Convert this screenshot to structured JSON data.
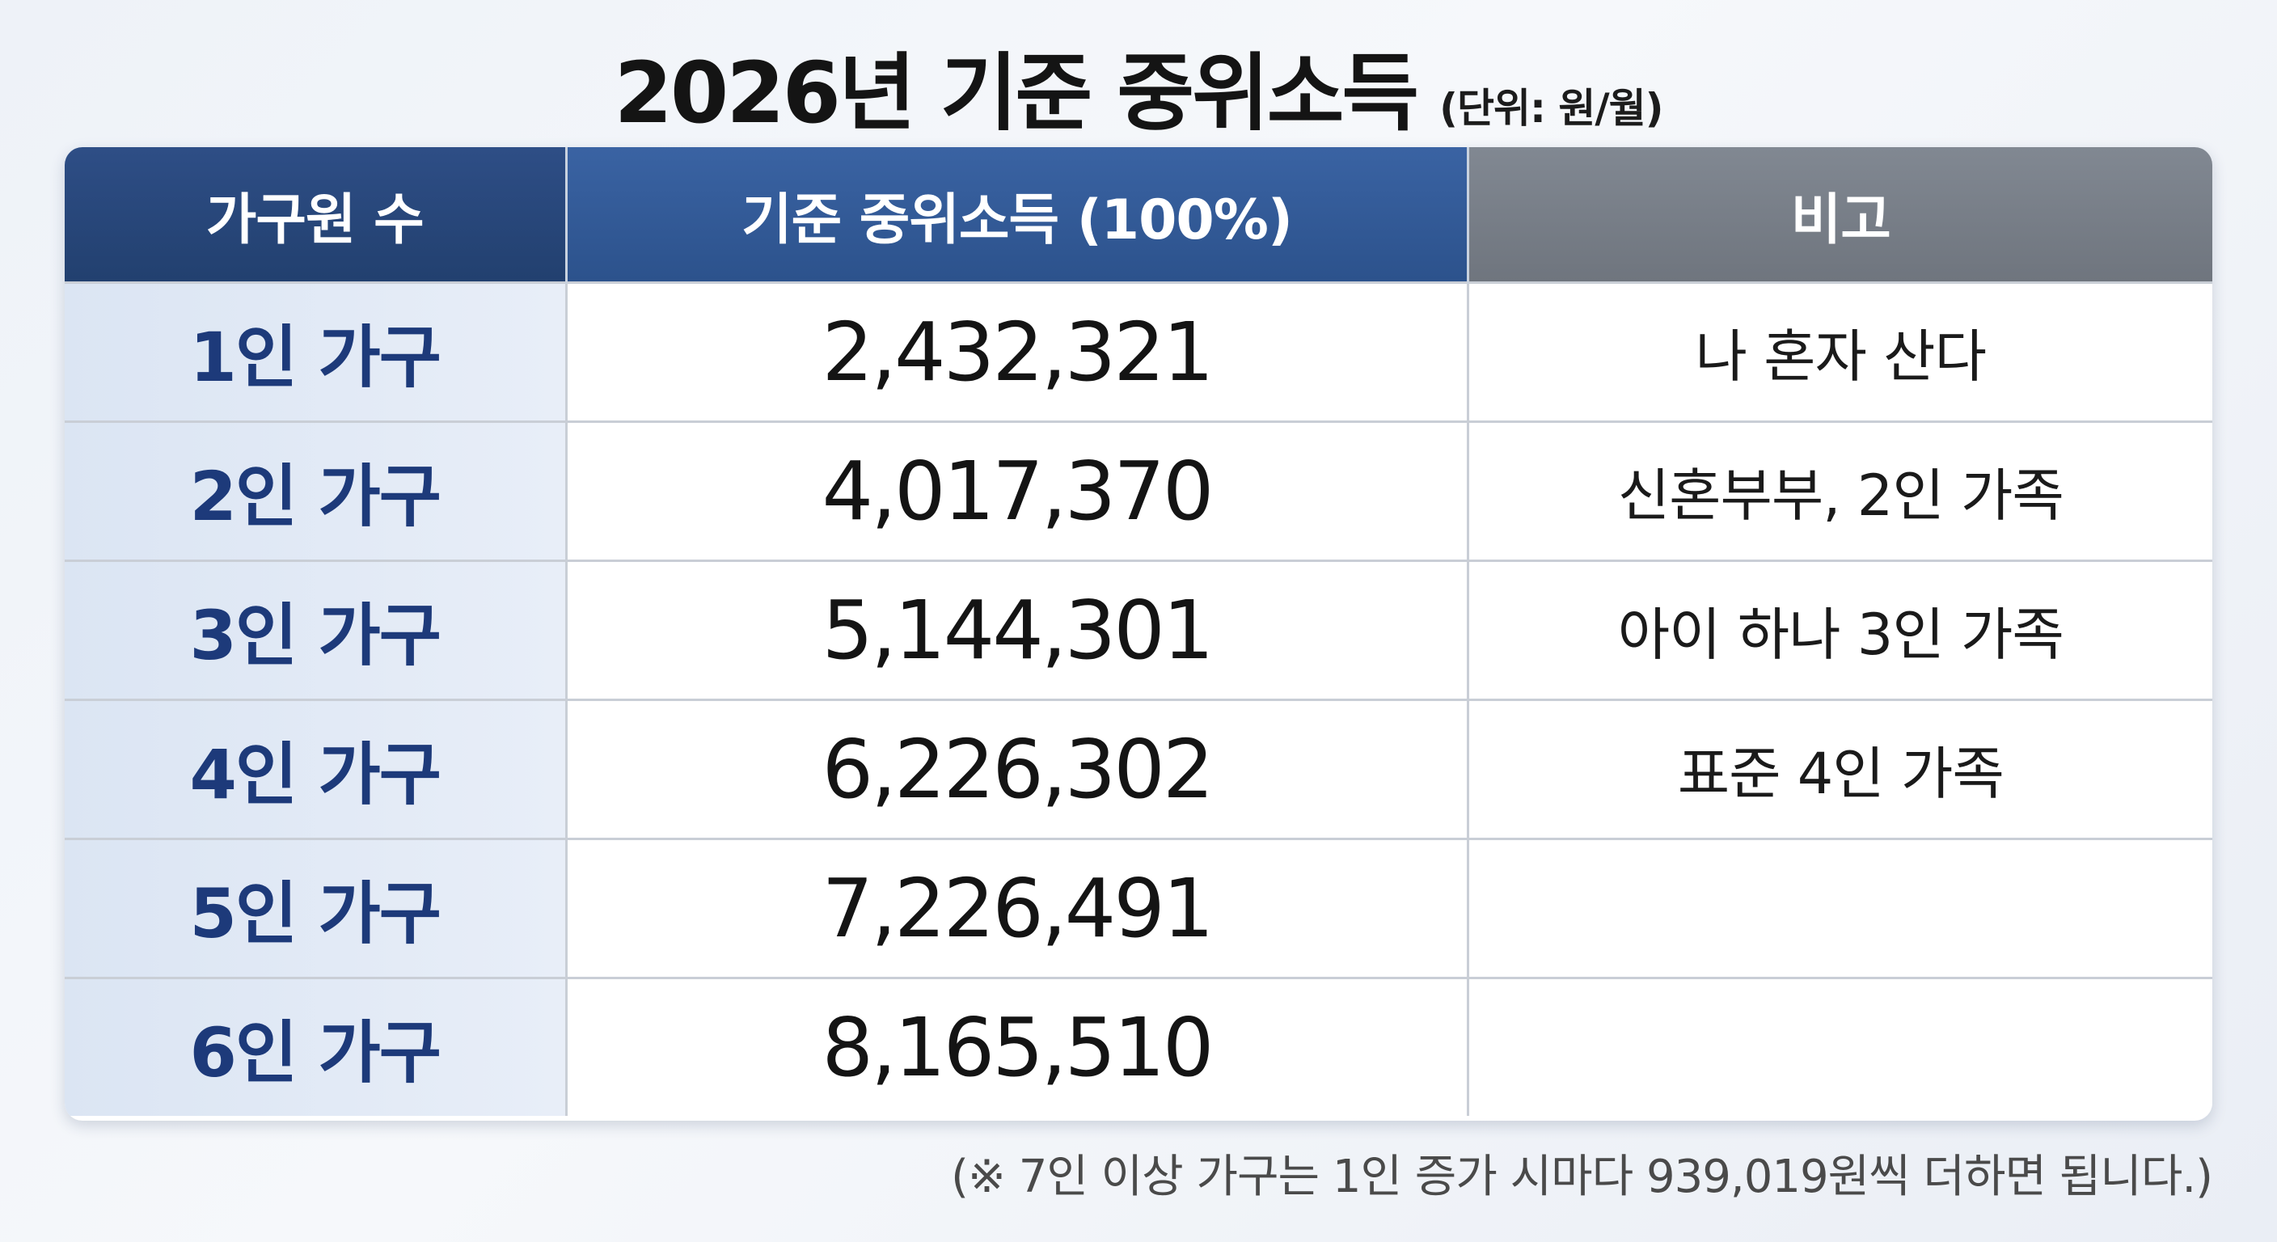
{
  "title": {
    "main": "2026년 기준 중위소득",
    "unit": "(단위: 원/월)"
  },
  "table": {
    "headers": [
      "가구원 수",
      "기준 중위소득 (100%)",
      "비고"
    ],
    "rows": [
      {
        "household": "1인 가구",
        "income": "2,432,321",
        "note": "나 혼자 산다"
      },
      {
        "household": "2인 가구",
        "income": "4,017,370",
        "note": "신혼부부, 2인 가족"
      },
      {
        "household": "3인 가구",
        "income": "5,144,301",
        "note": "아이 하나 3인 가족"
      },
      {
        "household": "4인 가구",
        "income": "6,226,302",
        "note": "표준 4인 가족"
      },
      {
        "household": "5인 가구",
        "income": "7,226,491",
        "note": ""
      },
      {
        "household": "6인 가구",
        "income": "8,165,510",
        "note": ""
      }
    ]
  },
  "footnote": "(※ 7인 이상 가구는 1인 증가 시마다 939,019원씩 더하면 됩니다.)",
  "colors": {
    "header_primary": "#22406f",
    "header_accent": "#2c528c",
    "header_gray": "#6f757e",
    "category_text": "#1d3a7a",
    "category_bg": "#dbe5f3"
  }
}
